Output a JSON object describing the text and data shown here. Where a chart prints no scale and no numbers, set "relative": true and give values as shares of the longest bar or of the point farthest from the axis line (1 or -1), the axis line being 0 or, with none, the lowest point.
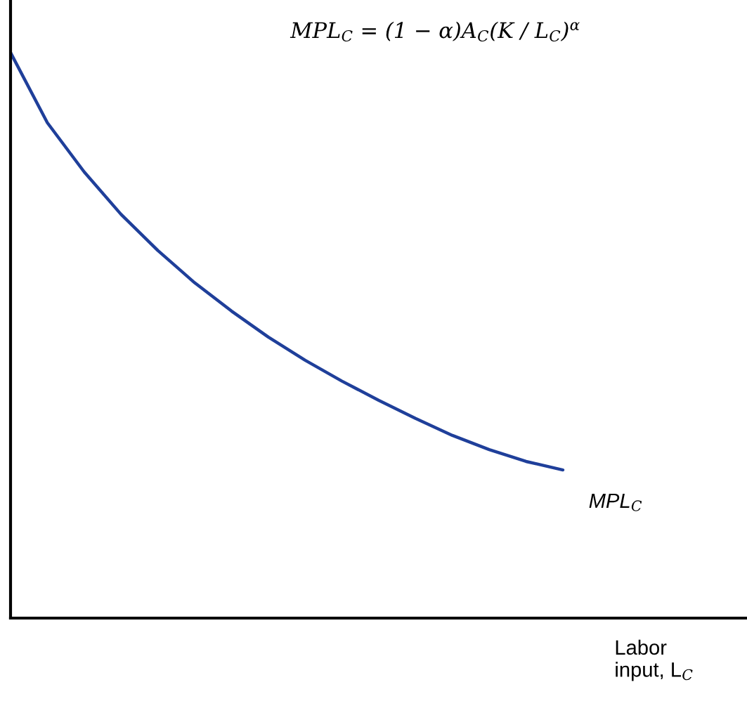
{
  "chart_data": {
    "type": "line",
    "relative": true,
    "xlabel": "Labor\ninput, L$_{C}$",
    "annotations": [
      "MPL$_{C}$ = (1 − α)A$_{C}$(K / L$_{C}$)$^{α}$"
    ],
    "categories": [
      null,
      null,
      null,
      null,
      null,
      null,
      null,
      null,
      null,
      null,
      null,
      null,
      null,
      null,
      null,
      null,
      null,
      null,
      null,
      null,
      null
    ],
    "series": [
      {
        "name": "MPL$_{C}$",
        "color": "#1f3f9a",
        "values": [
          1,
          0.876,
          0.789,
          0.714,
          0.65,
          0.593,
          0.543,
          0.497,
          0.456,
          0.419,
          0.385,
          0.353,
          0.323,
          0.298,
          0.277,
          0.262,
          null,
          null,
          null,
          null,
          null
        ]
      }
    ],
    "legend": false,
    "marker": "none",
    "line_style": "solid"
  }
}
